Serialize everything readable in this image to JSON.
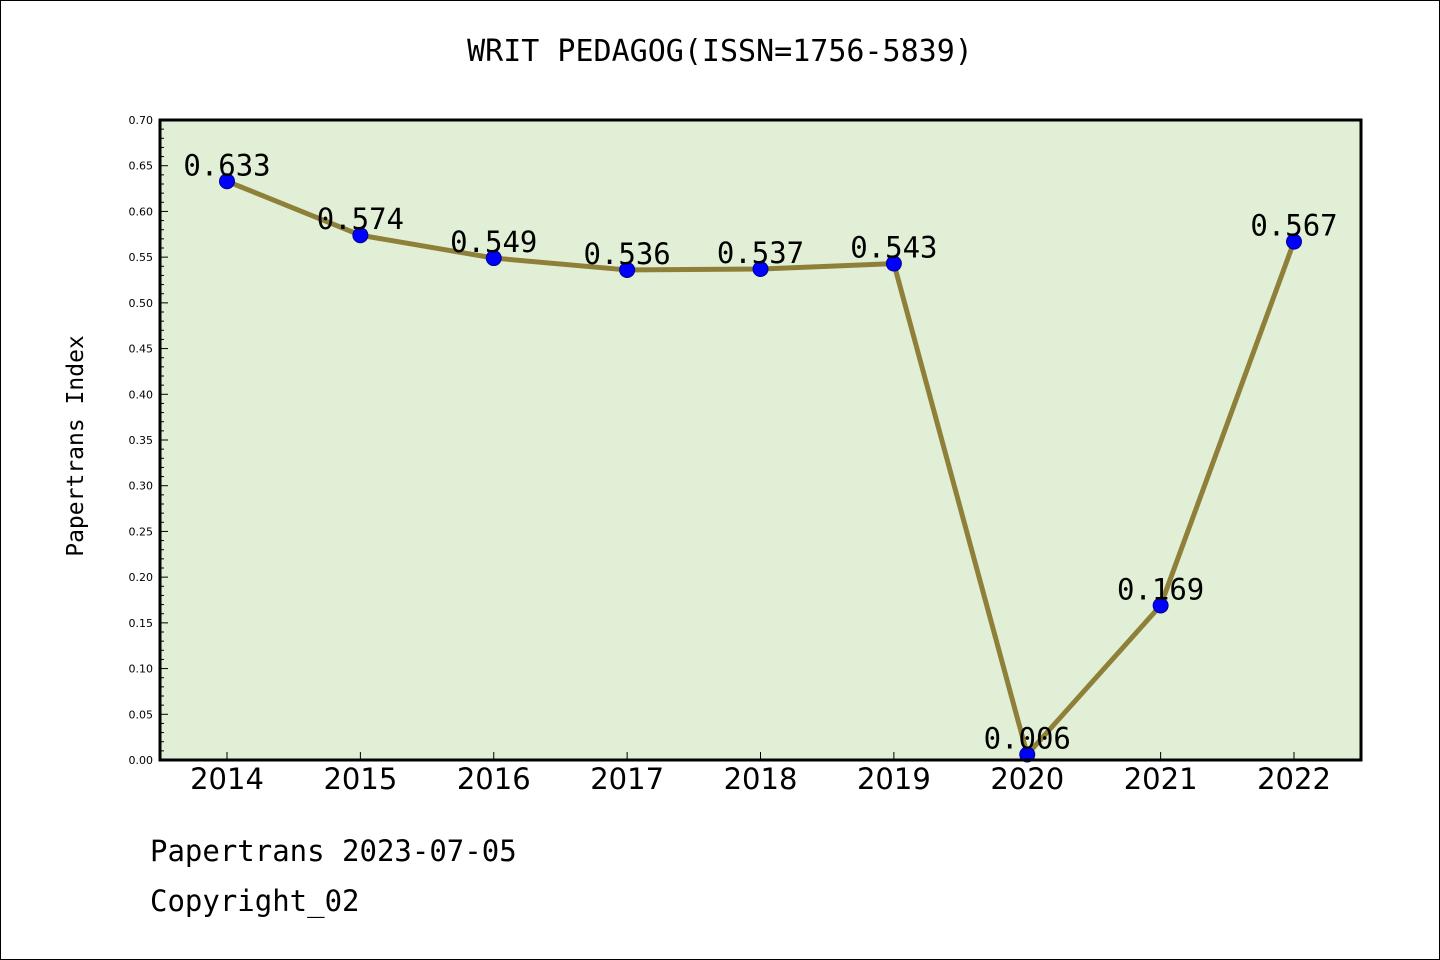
{
  "title": "WRIT PEDAGOG(ISSN=1756-5839)",
  "footer": {
    "line1": "Papertrans 2023-07-05",
    "line2": "Copyright_02"
  },
  "colors": {
    "plot_background": "#e1efd6",
    "line": "#8e8039",
    "marker": "#0000ff"
  },
  "chart_data": {
    "type": "line",
    "title": "WRIT PEDAGOG(ISSN=1756-5839)",
    "xlabel": "",
    "ylabel": "Papertrans Index",
    "x": [
      "2014",
      "2015",
      "2016",
      "2017",
      "2018",
      "2019",
      "2020",
      "2021",
      "2022"
    ],
    "series": [
      {
        "values": [
          0.633,
          0.574,
          0.549,
          0.536,
          0.537,
          0.543,
          0.006,
          0.169,
          0.567
        ],
        "labels": [
          "0.633",
          "0.574",
          "0.549",
          "0.536",
          "0.537",
          "0.543",
          "0.006",
          "0.169",
          "0.567"
        ]
      }
    ],
    "ylim": [
      0,
      0.7
    ],
    "y_ticks": [
      "0.00",
      "0.05",
      "0.10",
      "0.15",
      "0.20",
      "0.25",
      "0.30",
      "0.35",
      "0.40",
      "0.45",
      "0.50",
      "0.55",
      "0.60",
      "0.65",
      "0.70"
    ],
    "grid": false,
    "legend": "none"
  }
}
